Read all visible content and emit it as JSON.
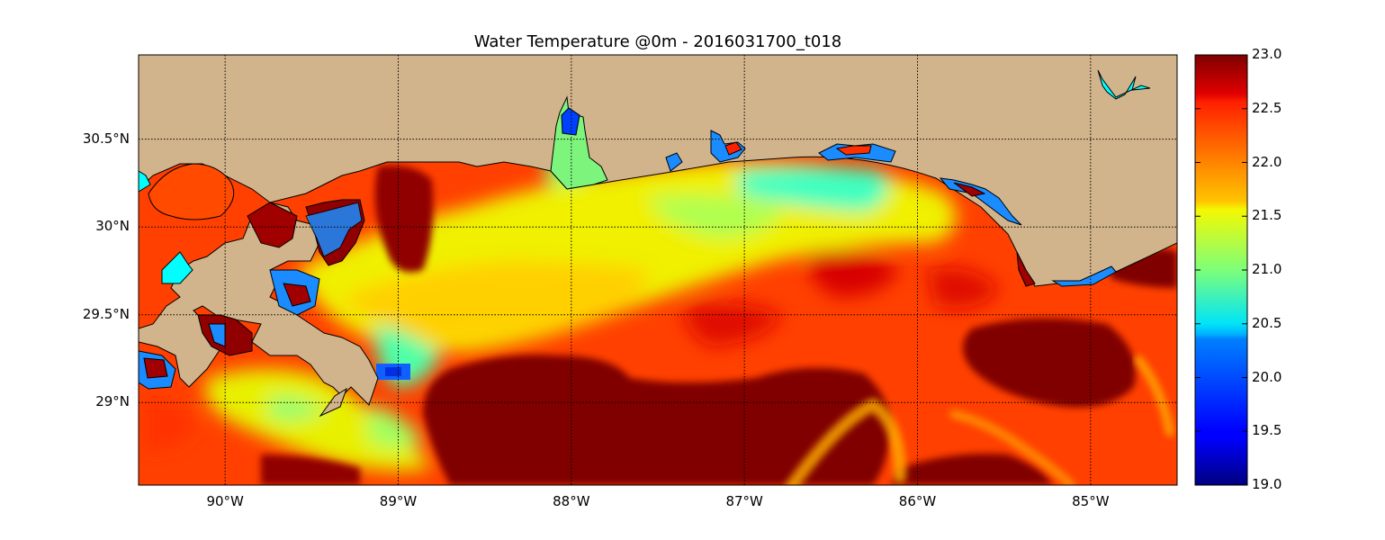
{
  "title": "Water Temperature @0m - 2016031700_t018",
  "map": {
    "lon_range": [
      -90.5,
      -84.5
    ],
    "lat_range": [
      28.53,
      30.98
    ],
    "grid": true,
    "lon_ticks": [
      {
        "value": -90,
        "label": "90°W"
      },
      {
        "value": -89,
        "label": "89°W"
      },
      {
        "value": -88,
        "label": "88°W"
      },
      {
        "value": -87,
        "label": "87°W"
      },
      {
        "value": -86,
        "label": "86°W"
      },
      {
        "value": -85,
        "label": "85°W"
      }
    ],
    "lat_ticks": [
      {
        "value": 30.5,
        "label": "30.5°N"
      },
      {
        "value": 30.0,
        "label": "30°N"
      },
      {
        "value": 29.5,
        "label": "29.5°N"
      },
      {
        "value": 29.0,
        "label": "29°N"
      }
    ],
    "colors": {
      "land": "#d2b48c",
      "coast": "#000000",
      "lake": "#00ffff"
    }
  },
  "colorbar": {
    "colormap": "jet",
    "min": 19.0,
    "max": 23.0,
    "ticks": [
      {
        "value": 23.0,
        "label": "23.0"
      },
      {
        "value": 22.5,
        "label": "22.5"
      },
      {
        "value": 22.0,
        "label": "22.0"
      },
      {
        "value": 21.5,
        "label": "21.5"
      },
      {
        "value": 21.0,
        "label": "21.0"
      },
      {
        "value": 20.5,
        "label": "20.5"
      },
      {
        "value": 20.0,
        "label": "20.0"
      },
      {
        "value": 19.5,
        "label": "19.5"
      },
      {
        "value": 19.0,
        "label": "19.0"
      }
    ]
  }
}
